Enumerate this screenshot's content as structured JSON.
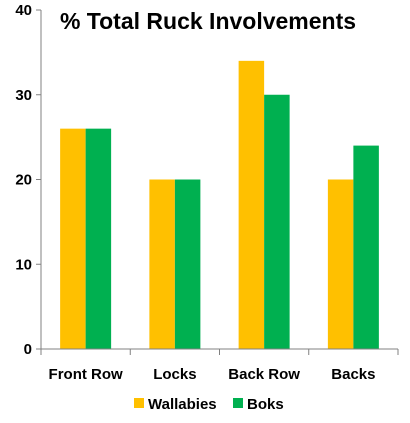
{
  "chart_data": {
    "type": "bar",
    "title": "% Total Ruck Involvements",
    "categories": [
      "Front Row",
      "Locks",
      "Back Row",
      "Backs"
    ],
    "series": [
      {
        "name": "Wallabies",
        "values": [
          26,
          20,
          34,
          20
        ],
        "color": "#FFC000"
      },
      {
        "name": "Boks",
        "values": [
          26,
          20,
          30,
          24
        ],
        "color": "#00B050"
      }
    ],
    "ylim": [
      0,
      40
    ],
    "yticks": [
      0,
      10,
      20,
      30,
      40
    ],
    "grid": false,
    "legend": "bottom"
  }
}
